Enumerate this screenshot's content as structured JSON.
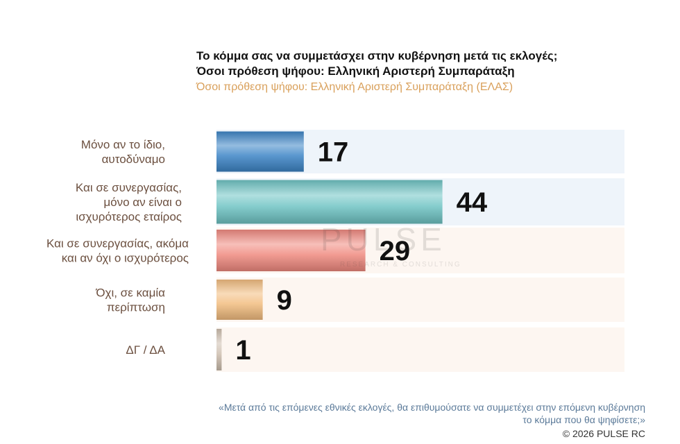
{
  "title_line1": "Το κόμμα σας να συμμετάσχει στην κυβέρνηση μετά τις εκλογές;",
  "title_line2": "Όσοι πρόθεση ψήφου: Ελληνική Αριστερή Συμπαράταξη",
  "subtitle": "Όσοι πρόθεση ψήφου: Ελληνική Αριστερή Συμπαράταξη (ΕΛΑΣ)",
  "watermark": {
    "name": "PULSE",
    "tagline": "RESEARCH & CONSULTING"
  },
  "footnote_line1": "«Μετά από τις επόμενες εθνικές εκλογές, θα επιθυμούσατε να συμμετέχει στην επόμενη κυβέρνηση",
  "footnote_line2": "το κόμμα που θα ψηφίσετε;»",
  "copyright": "©  2026  PULSE RC",
  "colors": {
    "bar_blue": "#3d85c6",
    "bar_teal": "#6fc4c4",
    "bar_red": "#f08a80",
    "bar_orange": "#f2bd80",
    "bar_beige": "#cfc0b0",
    "label_text": "#6b4f3f",
    "value_text": "#111111",
    "track_blue": "#eef4fa",
    "track_warm": "#fdf6f1"
  },
  "chart_data": {
    "type": "bar",
    "orientation": "horizontal",
    "categories": [
      [
        "Μόνο αν το ίδιο,",
        "αυτοδύναμο"
      ],
      [
        "Και σε συνεργασίας,",
        "μόνο αν είναι ο",
        "ισχυρότερος εταίρος"
      ],
      [
        "Και σε συνεργασίας, ακόμα",
        "και αν όχι ο ισχυρότερος"
      ],
      [
        "Όχι, σε καμία",
        "περίπτωση"
      ],
      [
        "ΔΓ / ΔΑ"
      ]
    ],
    "values": [
      17,
      44,
      29,
      9,
      1
    ],
    "value_labels": [
      "17",
      "44",
      "29",
      "9",
      "1"
    ],
    "bar_colors": [
      "#3d85c6",
      "#6fc4c4",
      "#f08a80",
      "#f2bd80",
      "#cfc0b0"
    ],
    "xlim": [
      0,
      100
    ],
    "grid": false,
    "legend": false
  }
}
